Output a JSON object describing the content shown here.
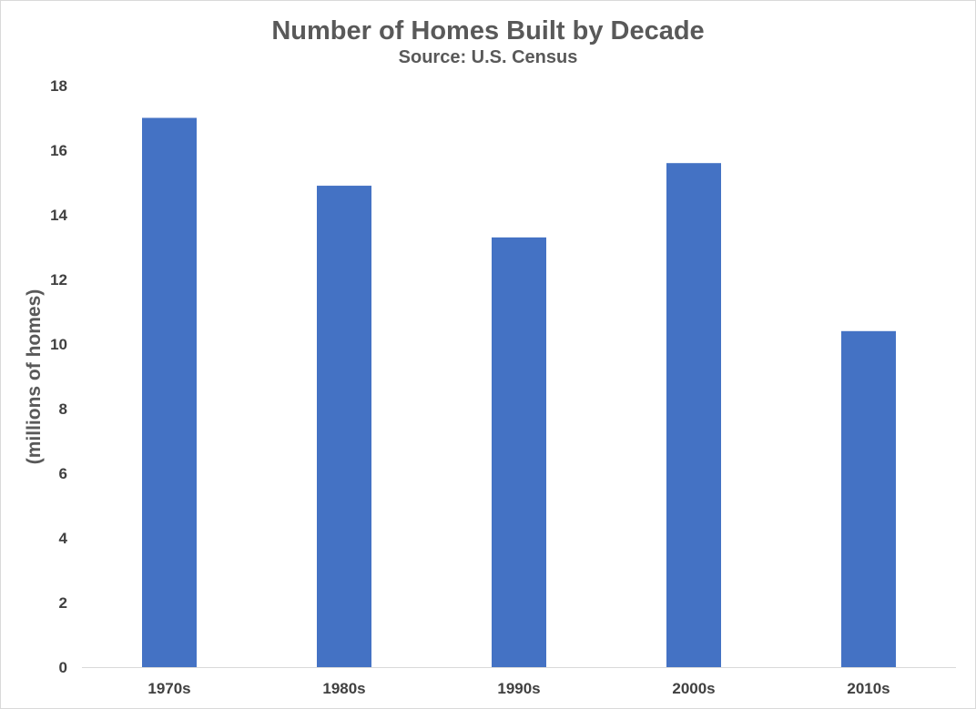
{
  "chart_data": {
    "type": "bar",
    "title": "Number of Homes Built by Decade",
    "subtitle": "Source: U.S. Census",
    "xlabel": "",
    "ylabel": "(millions of homes)",
    "categories": [
      "1970s",
      "1980s",
      "1990s",
      "2000s",
      "2010s"
    ],
    "values": [
      17.0,
      14.9,
      13.3,
      15.6,
      10.4
    ],
    "ylim": [
      0,
      18
    ],
    "yticks": [
      "0",
      "2",
      "4",
      "6",
      "8",
      "10",
      "12",
      "14",
      "16",
      "18"
    ],
    "grid": false,
    "legend": "none",
    "bar_color": "#4472C4"
  }
}
